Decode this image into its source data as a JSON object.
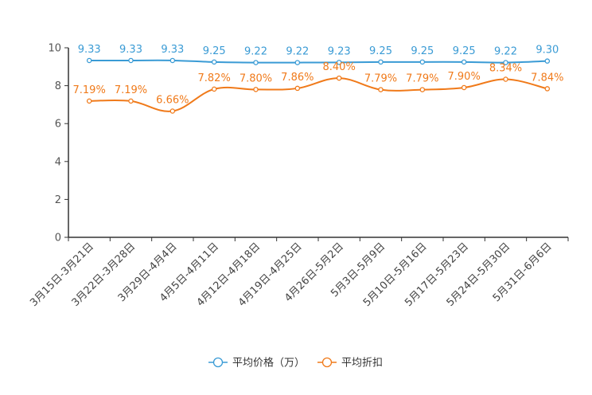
{
  "chart_data": {
    "type": "line",
    "title": "",
    "xlabel": "",
    "ylabel": "",
    "ylim": [
      0,
      10
    ],
    "yticks": [
      0,
      2,
      4,
      6,
      8,
      10
    ],
    "categories": [
      "3月15日-3月21日",
      "3月22日-3月28日",
      "3月29日-4月4日",
      "4月5日-4月11日",
      "4月12日-4月18日",
      "4月19日-4月25日",
      "4月26日-5月2日",
      "5月3日-5月9日",
      "5月10日-5月16日",
      "5月17日-5月23日",
      "5月24日-5月30日",
      "5月31日-6月6日"
    ],
    "series": [
      {
        "name": "平均价格（万）",
        "color": "#3a9bd5",
        "values": [
          9.33,
          9.33,
          9.33,
          9.25,
          9.22,
          9.22,
          9.23,
          9.25,
          9.25,
          9.25,
          9.22,
          9.3
        ],
        "labels": [
          "9.33",
          "9.33",
          "9.33",
          "9.25",
          "9.22",
          "9.22",
          "9.23",
          "9.25",
          "9.25",
          "9.25",
          "9.22",
          "9.30"
        ]
      },
      {
        "name": "平均折扣",
        "color": "#f07a1a",
        "values": [
          7.19,
          7.19,
          6.66,
          7.82,
          7.8,
          7.86,
          8.4,
          7.79,
          7.79,
          7.9,
          8.34,
          7.84
        ],
        "labels": [
          "7.19%",
          "7.19%",
          "6.66%",
          "7.82%",
          "7.80%",
          "7.86%",
          "8.40%",
          "7.79%",
          "7.79%",
          "7.90%",
          "8.34%",
          "7.84%"
        ]
      }
    ],
    "legend_position": "bottom-center"
  }
}
